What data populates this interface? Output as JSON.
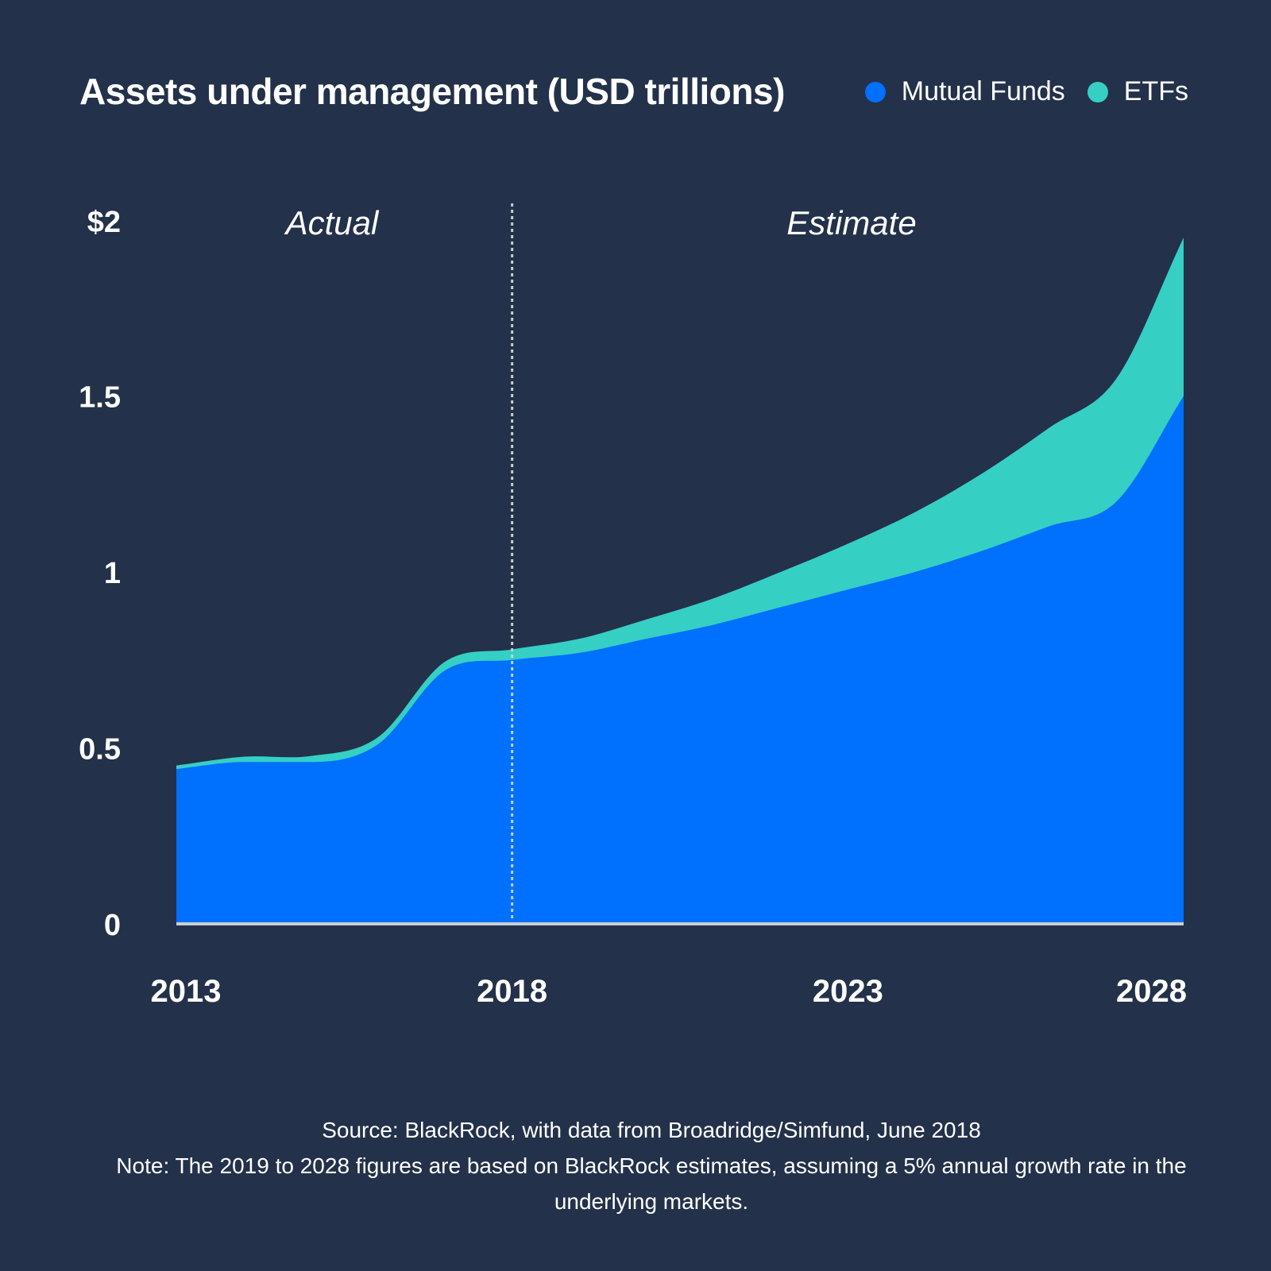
{
  "chart_data": {
    "type": "area",
    "title": "Assets under management (USD trillions)",
    "stacked": true,
    "x": [
      2013,
      2014,
      2015,
      2016,
      2017,
      2018,
      2019,
      2020,
      2021,
      2022,
      2023,
      2024,
      2025,
      2026,
      2027,
      2028
    ],
    "series": [
      {
        "name": "Mutual Funds",
        "color": "#0070ff",
        "values": [
          0.44,
          0.46,
          0.46,
          0.51,
          0.72,
          0.75,
          0.77,
          0.81,
          0.85,
          0.9,
          0.95,
          1.0,
          1.06,
          1.13,
          1.2,
          1.5
        ]
      },
      {
        "name": "ETFs",
        "color": "#35cfc4",
        "values": [
          0.01,
          0.015,
          0.017,
          0.02,
          0.025,
          0.03,
          0.04,
          0.055,
          0.075,
          0.1,
          0.13,
          0.17,
          0.22,
          0.28,
          0.35,
          0.45
        ]
      }
    ],
    "xlim": [
      2013,
      2028
    ],
    "ylim": [
      0,
      2
    ],
    "yticks": [
      "0",
      "0.5",
      "1",
      "1.5",
      "$2"
    ],
    "ytick_values": [
      0,
      0.5,
      1,
      1.5,
      2
    ],
    "xticks": [
      "2013",
      "2018",
      "2023",
      "2028"
    ],
    "xtick_values": [
      2013,
      2018,
      2023,
      2028
    ],
    "divider_at": 2018,
    "period_labels": {
      "left": "Actual",
      "right": "Estimate"
    },
    "legend": "top-right",
    "grid": false
  },
  "legend_items": [
    {
      "label": "Mutual Funds",
      "color": "#0070ff"
    },
    {
      "label": "ETFs",
      "color": "#35cfc4"
    }
  ],
  "footnote": {
    "source": "Source: BlackRock, with data from Broadridge/Simfund, June 2018",
    "note": "Note: The 2019 to 2028 figures are based on BlackRock estimates, assuming a 5% annual growth rate in the underlying markets."
  },
  "colors": {
    "background": "#23314a",
    "mutual_funds": "#0070ff",
    "etfs": "#35cfc4",
    "baseline": "#c9ced6",
    "divider": "#c9ced6"
  }
}
